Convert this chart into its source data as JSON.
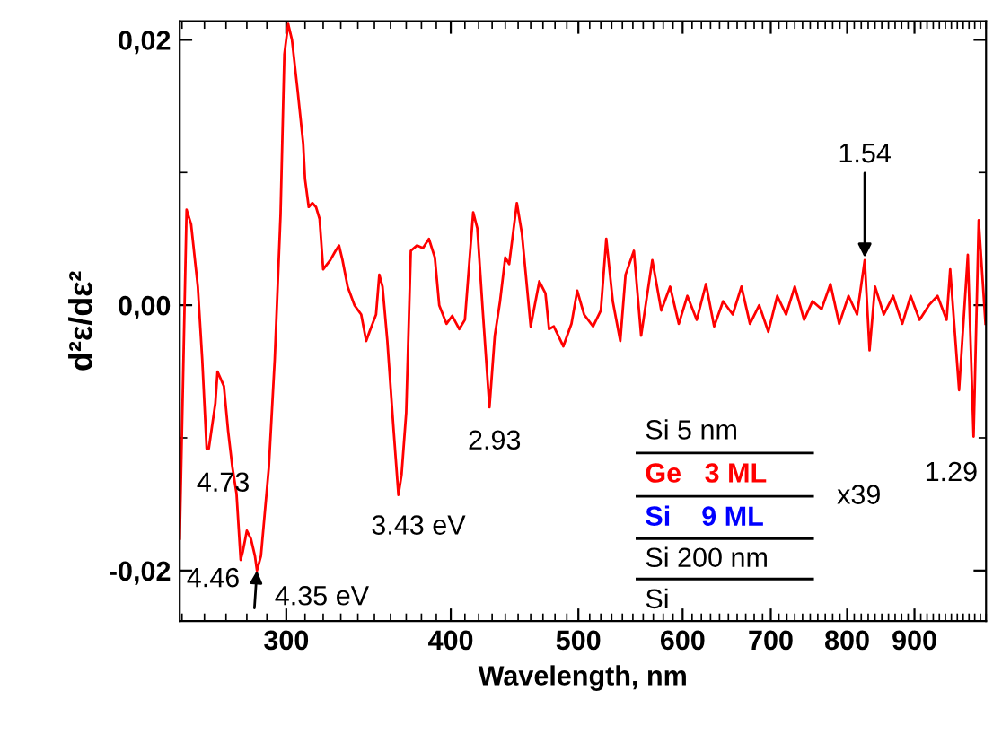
{
  "chart_data": {
    "type": "line",
    "xlabel": "Wavelength, nm",
    "ylabel": "d²ε/dε²",
    "log": "x",
    "xlim": [
      249,
      1020
    ],
    "ylim": [
      -0.0238,
      0.0214
    ],
    "xticks": [
      300,
      400,
      500,
      600,
      700,
      800,
      900
    ],
    "yticks": [
      {
        "value": -0.02,
        "label": "-0,02"
      },
      {
        "value": 0.0,
        "label": "0,00"
      },
      {
        "value": 0.02,
        "label": "0,02"
      }
    ],
    "grid": false,
    "marker": "none",
    "line_style": "solid",
    "series": [
      {
        "color": "#ff0000",
        "x": [
          249,
          252,
          254,
          257,
          259,
          261,
          262,
          265,
          266,
          269,
          271,
          273,
          275,
          277,
          278,
          280,
          282,
          284,
          285,
          287,
          291,
          294,
          297,
          299,
          301,
          303,
          306,
          309,
          310,
          312,
          314,
          316,
          318,
          320,
          324,
          327,
          329,
          331,
          334,
          338,
          342,
          345,
          347,
          351,
          353,
          355,
          358,
          362,
          365,
          367,
          370,
          373,
          377,
          381,
          385,
          389,
          392,
          397,
          401,
          406,
          410,
          416,
          419,
          423,
          428,
          432,
          436,
          440,
          443,
          449,
          453,
          460,
          467,
          472,
          475,
          479,
          487,
          494,
          499,
          505,
          513,
          520,
          525,
          531,
          538,
          543,
          551,
          558,
          569,
          578,
          587,
          596,
          605,
          615,
          625,
          634,
          644,
          655,
          665,
          675,
          686,
          697,
          708,
          719,
          730,
          742,
          753,
          765,
          777,
          789,
          802,
          814,
          825,
          832,
          840,
          853,
          867,
          881,
          894,
          908,
          923,
          937,
          952,
          958,
          973,
          988,
          998,
          1007,
          1019
        ],
        "values": [
          -0.0176,
          0.0072,
          0.0061,
          0.0014,
          -0.0041,
          -0.0108,
          -0.0108,
          -0.0074,
          -0.005,
          -0.0061,
          -0.0095,
          -0.0122,
          -0.0142,
          -0.0192,
          -0.0186,
          -0.017,
          -0.0176,
          -0.0189,
          -0.02,
          -0.0189,
          -0.0122,
          -0.0041,
          0.0068,
          0.0189,
          0.0212,
          0.02,
          0.0162,
          0.0122,
          0.0095,
          0.0074,
          0.0077,
          0.0074,
          0.0065,
          0.0027,
          0.0034,
          0.0041,
          0.0045,
          0.0034,
          0.0014,
          0.0,
          -0.0007,
          -0.0027,
          -0.002,
          -0.0007,
          0.0023,
          0.0014,
          -0.0027,
          -0.0095,
          -0.0143,
          -0.0128,
          -0.0081,
          0.0041,
          0.0045,
          0.0043,
          0.005,
          0.0036,
          0.0,
          -0.0014,
          -0.0008,
          -0.0018,
          -0.0011,
          0.007,
          0.0058,
          -0.0004,
          -0.0077,
          -0.0023,
          0.0003,
          0.0036,
          0.0031,
          0.0077,
          0.0054,
          -0.0016,
          0.0018,
          0.0009,
          -0.0018,
          -0.0016,
          -0.0031,
          -0.0014,
          0.0011,
          -0.0007,
          -0.0016,
          -0.0004,
          0.005,
          0.0003,
          -0.0027,
          0.0023,
          0.0041,
          -0.0023,
          0.0034,
          -0.0004,
          0.0014,
          -0.0014,
          0.0007,
          -0.0011,
          0.0016,
          -0.0016,
          0.0003,
          -0.0007,
          0.0014,
          -0.0014,
          0.0,
          -0.002,
          0.0007,
          -0.0007,
          0.0014,
          -0.0011,
          0.0003,
          -0.0003,
          0.0016,
          -0.0014,
          0.0007,
          -0.0007,
          0.0034,
          -0.0034,
          0.0014,
          -0.0007,
          0.0007,
          -0.0014,
          0.0007,
          -0.0011,
          0.0,
          0.0007,
          -0.0011,
          0.0027,
          -0.0064,
          0.0038,
          -0.0099,
          0.0064,
          -0.0014
        ]
      }
    ],
    "annotations": [
      {
        "text": "4.73",
        "x": 271,
        "y": -0.0105
      },
      {
        "text": "4.46",
        "x": 277,
        "y": -0.0192
      },
      {
        "text": "4.35 eV",
        "x": 285,
        "y": -0.02
      },
      {
        "text": "3.43 eV",
        "x": 365,
        "y": -0.0143
      },
      {
        "text": "2.93",
        "x": 428,
        "y": -0.0077
      },
      {
        "text": "1.54",
        "x": 825,
        "y": 0.0034
      },
      {
        "text": "1.29",
        "x": 998,
        "y": -0.0099
      },
      "Si 5 nm",
      "Ge   3 ML",
      "Si    9 ML",
      "Si 200 nm",
      "Si",
      "x39"
    ]
  }
}
